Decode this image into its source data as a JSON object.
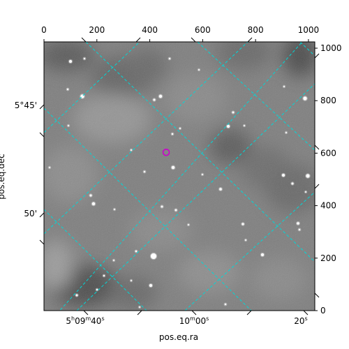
{
  "chart_data": {
    "type": "image",
    "image_style": "grayscale astronomical sky image with scattered stars",
    "xlabel": "pos.eq.ra",
    "ylabel": "pos.eq.dec",
    "pixel_axes": {
      "xlim": [
        0,
        1024
      ],
      "ylim": [
        0,
        1024
      ],
      "top_ticks": [
        0,
        200,
        400,
        600,
        800,
        1000
      ],
      "right_ticks": [
        0,
        200,
        400,
        600,
        800,
        1000
      ]
    },
    "world_ticks": {
      "ra": [
        {
          "label_h": "5",
          "h": "h",
          "label_m": "09",
          "m": "m",
          "label_s": "40",
          "s": "s"
        },
        {
          "label_h": "",
          "h": "",
          "label_m": "10",
          "m": "m",
          "label_s": "00",
          "s": "s"
        },
        {
          "label_h": "",
          "h": "",
          "label_m": "",
          "m": "",
          "label_s": "20",
          "s": "s"
        }
      ],
      "dec": [
        "5°45'",
        "50'"
      ]
    },
    "grid": {
      "on": true,
      "color": "#00d8d8",
      "style": "dashed"
    },
    "marker": {
      "shape": "circle",
      "color": "#cc00cc",
      "x": 462,
      "y": 603
    }
  }
}
